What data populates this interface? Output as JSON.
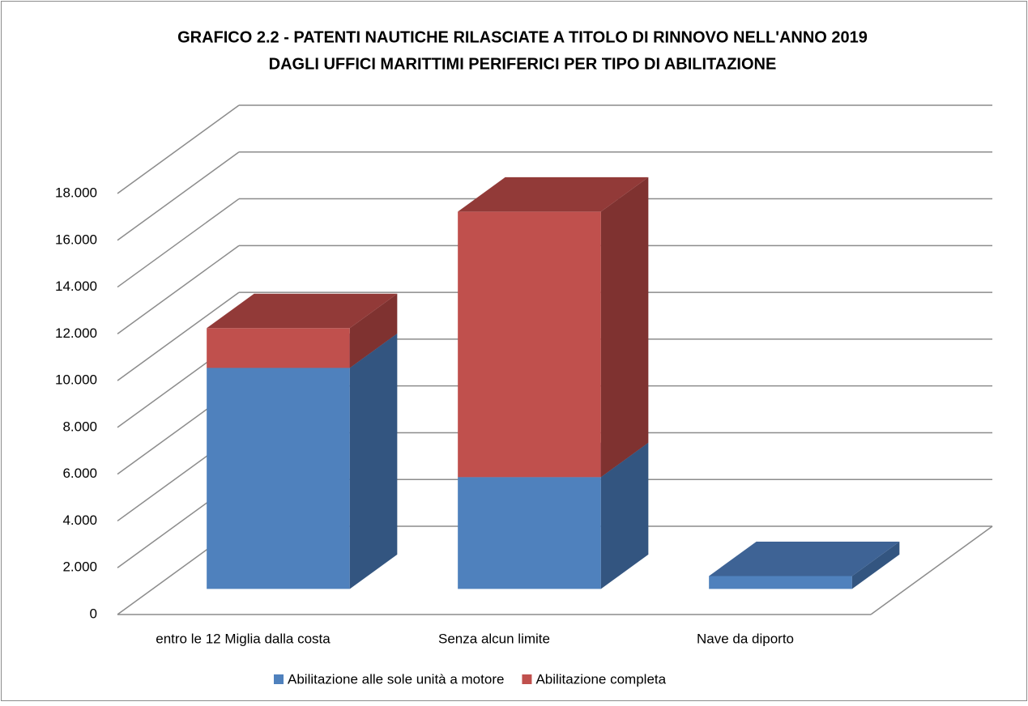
{
  "chart_data": {
    "type": "bar3d_stacked",
    "title": [
      "GRAFICO 2.2 - PATENTI NAUTICHE RILASCIATE A TITOLO DI RINNOVO NELL'ANNO 2019",
      "DAGLI UFFICI MARITTIMI PERIFERICI PER TIPO DI ABILITAZIONE"
    ],
    "categories": [
      "entro le 12 Miglia dalla costa",
      "Senza alcun limite",
      "Nave da diporto"
    ],
    "series": [
      {
        "name": "Abilitazione alle sole unità a motore",
        "color": "#4f81bd",
        "side": "#335580",
        "top": "#3e6395",
        "values": [
          9450,
          4780,
          550
        ]
      },
      {
        "name": "Abilitazione completa",
        "color": "#c0504d",
        "side": "#7f3230",
        "top": "#923a38",
        "values": [
          1700,
          11350,
          0
        ]
      }
    ],
    "ylim": [
      0,
      18000
    ],
    "yticks": [
      0,
      {
        "value": 2000,
        "label": "2.000"
      },
      {
        "value": 4000,
        "label": "4.000"
      },
      {
        "value": 6000,
        "label": "6.000"
      },
      {
        "value": 8000,
        "label": "8.000"
      },
      {
        "value": 10000,
        "label": "10.000"
      },
      {
        "value": 12000,
        "label": "12.000"
      },
      {
        "value": 14000,
        "label": "14.000"
      },
      {
        "value": 16000,
        "label": "16.000"
      },
      {
        "value": 18000,
        "label": "18.000"
      }
    ],
    "grid": true,
    "legend": "bottom"
  }
}
